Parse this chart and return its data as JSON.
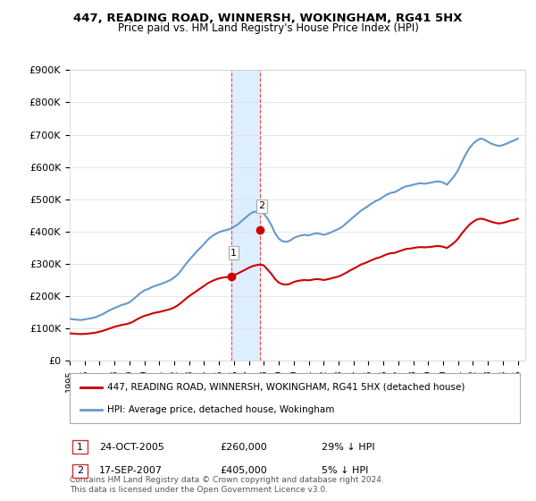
{
  "title": "447, READING ROAD, WINNERSH, WOKINGHAM, RG41 5HX",
  "subtitle": "Price paid vs. HM Land Registry's House Price Index (HPI)",
  "ylabel_ticks": [
    "£0",
    "£100K",
    "£200K",
    "£300K",
    "£400K",
    "£500K",
    "£600K",
    "£700K",
    "£800K",
    "£900K"
  ],
  "ytick_values": [
    0,
    100000,
    200000,
    300000,
    400000,
    500000,
    600000,
    700000,
    800000,
    900000
  ],
  "ylim": [
    0,
    900000
  ],
  "xlim_start": 1995.0,
  "xlim_end": 2025.5,
  "xtick_years": [
    1995,
    1996,
    1997,
    1998,
    1999,
    2000,
    2001,
    2002,
    2003,
    2004,
    2005,
    2006,
    2007,
    2008,
    2009,
    2010,
    2011,
    2012,
    2013,
    2014,
    2015,
    2016,
    2017,
    2018,
    2019,
    2020,
    2021,
    2022,
    2023,
    2024,
    2025
  ],
  "sale1_x": 2005.81,
  "sale1_y": 260000,
  "sale1_label": "1",
  "sale1_date": "24-OCT-2005",
  "sale1_price": "£260,000",
  "sale1_hpi": "29% ↓ HPI",
  "sale2_x": 2007.71,
  "sale2_y": 405000,
  "sale2_label": "2",
  "sale2_date": "17-SEP-2007",
  "sale2_price": "£405,000",
  "sale2_hpi": "5% ↓ HPI",
  "shade_x1": 2005.81,
  "shade_x2": 2007.71,
  "property_color": "#cc0000",
  "hpi_color": "#6699cc",
  "shade_color": "#ddeeff",
  "sale_dot_color": "#cc0000",
  "vline_color": "#ff4444",
  "legend_label1": "447, READING ROAD, WINNERSH, WOKINGHAM, RG41 5HX (detached house)",
  "legend_label2": "HPI: Average price, detached house, Wokingham",
  "footer": "Contains HM Land Registry data © Crown copyright and database right 2024.\nThis data is licensed under the Open Government Licence v3.0.",
  "hpi_data_x": [
    1995.0,
    1995.25,
    1995.5,
    1995.75,
    1996.0,
    1996.25,
    1996.5,
    1996.75,
    1997.0,
    1997.25,
    1997.5,
    1997.75,
    1998.0,
    1998.25,
    1998.5,
    1998.75,
    1999.0,
    1999.25,
    1999.5,
    1999.75,
    2000.0,
    2000.25,
    2000.5,
    2000.75,
    2001.0,
    2001.25,
    2001.5,
    2001.75,
    2002.0,
    2002.25,
    2002.5,
    2002.75,
    2003.0,
    2003.25,
    2003.5,
    2003.75,
    2004.0,
    2004.25,
    2004.5,
    2004.75,
    2005.0,
    2005.25,
    2005.5,
    2005.75,
    2006.0,
    2006.25,
    2006.5,
    2006.75,
    2007.0,
    2007.25,
    2007.5,
    2007.75,
    2008.0,
    2008.25,
    2008.5,
    2008.75,
    2009.0,
    2009.25,
    2009.5,
    2009.75,
    2010.0,
    2010.25,
    2010.5,
    2010.75,
    2011.0,
    2011.25,
    2011.5,
    2011.75,
    2012.0,
    2012.25,
    2012.5,
    2012.75,
    2013.0,
    2013.25,
    2013.5,
    2013.75,
    2014.0,
    2014.25,
    2014.5,
    2014.75,
    2015.0,
    2015.25,
    2015.5,
    2015.75,
    2016.0,
    2016.25,
    2016.5,
    2016.75,
    2017.0,
    2017.25,
    2017.5,
    2017.75,
    2018.0,
    2018.25,
    2018.5,
    2018.75,
    2019.0,
    2019.25,
    2019.5,
    2019.75,
    2020.0,
    2020.25,
    2020.5,
    2020.75,
    2021.0,
    2021.25,
    2021.5,
    2021.75,
    2022.0,
    2022.25,
    2022.5,
    2022.75,
    2023.0,
    2023.25,
    2023.5,
    2023.75,
    2024.0,
    2024.25,
    2024.5,
    2024.75,
    2025.0
  ],
  "hpi_data_y": [
    130000,
    128000,
    127000,
    126000,
    128000,
    130000,
    132000,
    135000,
    140000,
    145000,
    152000,
    158000,
    163000,
    168000,
    173000,
    176000,
    181000,
    190000,
    200000,
    210000,
    218000,
    222000,
    228000,
    232000,
    236000,
    240000,
    245000,
    250000,
    258000,
    268000,
    282000,
    298000,
    312000,
    325000,
    338000,
    350000,
    362000,
    375000,
    385000,
    392000,
    398000,
    402000,
    405000,
    408000,
    415000,
    422000,
    432000,
    442000,
    452000,
    460000,
    462000,
    460000,
    455000,
    440000,
    420000,
    395000,
    378000,
    370000,
    368000,
    372000,
    380000,
    385000,
    388000,
    390000,
    388000,
    392000,
    395000,
    393000,
    390000,
    393000,
    398000,
    403000,
    408000,
    415000,
    425000,
    435000,
    445000,
    455000,
    465000,
    472000,
    480000,
    488000,
    495000,
    500000,
    508000,
    515000,
    520000,
    522000,
    528000,
    535000,
    540000,
    542000,
    545000,
    548000,
    550000,
    548000,
    550000,
    552000,
    555000,
    555000,
    552000,
    545000,
    558000,
    572000,
    590000,
    615000,
    638000,
    658000,
    672000,
    682000,
    688000,
    685000,
    678000,
    672000,
    668000,
    665000,
    668000,
    672000,
    678000,
    682000,
    688000
  ],
  "property_data_x": [
    1995.0,
    1995.25,
    1995.5,
    1995.75,
    1996.0,
    1996.25,
    1996.5,
    1996.75,
    1997.0,
    1997.25,
    1997.5,
    1997.75,
    1998.0,
    1998.25,
    1998.5,
    1998.75,
    1999.0,
    1999.25,
    1999.5,
    1999.75,
    2000.0,
    2000.25,
    2000.5,
    2000.75,
    2001.0,
    2001.25,
    2001.5,
    2001.75,
    2002.0,
    2002.25,
    2002.5,
    2002.75,
    2003.0,
    2003.25,
    2003.5,
    2003.75,
    2004.0,
    2004.25,
    2004.5,
    2004.75,
    2005.0,
    2005.25,
    2005.5,
    2005.75,
    2006.0,
    2006.25,
    2006.5,
    2006.75,
    2007.0,
    2007.25,
    2007.5,
    2007.75,
    2008.0,
    2008.25,
    2008.5,
    2008.75,
    2009.0,
    2009.25,
    2009.5,
    2009.75,
    2010.0,
    2010.25,
    2010.5,
    2010.75,
    2011.0,
    2011.25,
    2011.5,
    2011.75,
    2012.0,
    2012.25,
    2012.5,
    2012.75,
    2013.0,
    2013.25,
    2013.5,
    2013.75,
    2014.0,
    2014.25,
    2014.5,
    2014.75,
    2015.0,
    2015.25,
    2015.5,
    2015.75,
    2016.0,
    2016.25,
    2016.5,
    2016.75,
    2017.0,
    2017.25,
    2017.5,
    2017.75,
    2018.0,
    2018.25,
    2018.5,
    2018.75,
    2019.0,
    2019.25,
    2019.5,
    2019.75,
    2020.0,
    2020.25,
    2020.5,
    2020.75,
    2021.0,
    2021.25,
    2021.5,
    2021.75,
    2022.0,
    2022.25,
    2022.5,
    2022.75,
    2023.0,
    2023.25,
    2023.5,
    2023.75,
    2024.0,
    2024.25,
    2024.5,
    2024.75,
    2025.0
  ],
  "property_data_y": [
    85000,
    84000,
    83000,
    82500,
    83000,
    84000,
    85500,
    87000,
    90000,
    93000,
    97000,
    101000,
    105000,
    108000,
    111000,
    113000,
    116000,
    121000,
    128000,
    134000,
    139000,
    142000,
    146000,
    149000,
    151000,
    154000,
    157000,
    160000,
    165000,
    172000,
    181000,
    191000,
    200000,
    208000,
    216000,
    224000,
    232000,
    240000,
    246000,
    251000,
    255000,
    257500,
    259000,
    260500,
    265000,
    270000,
    276000,
    282000,
    288000,
    293000,
    296000,
    298000,
    295000,
    282000,
    269000,
    253000,
    242000,
    237000,
    236000,
    238000,
    244000,
    247000,
    249000,
    250000,
    249000,
    251000,
    253000,
    252000,
    250000,
    252000,
    255000,
    258000,
    261000,
    266000,
    272000,
    279000,
    285000,
    291000,
    298000,
    302000,
    307000,
    312000,
    317000,
    320000,
    325000,
    330000,
    333000,
    334000,
    338000,
    342000,
    346000,
    347000,
    349000,
    351000,
    352000,
    351000,
    352000,
    353000,
    355000,
    355000,
    353000,
    349000,
    357000,
    366000,
    378000,
    394000,
    408000,
    421000,
    430000,
    437000,
    440000,
    438000,
    434000,
    430000,
    427000,
    425000,
    427000,
    430000,
    434000,
    436000,
    440000
  ]
}
